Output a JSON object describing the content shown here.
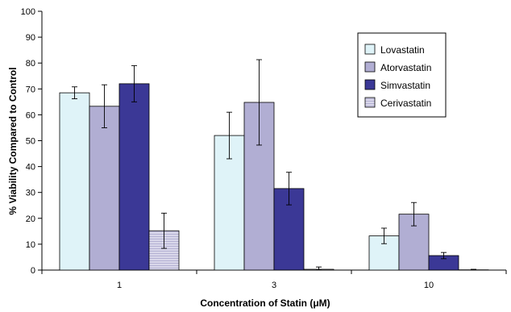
{
  "chart_data": {
    "type": "bar",
    "xlabel": "Concentration of Statin (μM)",
    "ylabel": "% Viability Compared to Control",
    "categories": [
      "1",
      "3",
      "10"
    ],
    "ylim": [
      0,
      100
    ],
    "yticks": [
      0,
      10,
      20,
      30,
      40,
      50,
      60,
      70,
      80,
      90,
      100
    ],
    "grid": false,
    "legend_position": "top-right",
    "series": [
      {
        "name": "Lovastatin",
        "color": "#dff3f8",
        "values": [
          68.5,
          52,
          13.2
        ],
        "errors": [
          2.3,
          9,
          3
        ]
      },
      {
        "name": "Atorvastatin",
        "color": "#b1aed3",
        "values": [
          63.3,
          64.8,
          21.6
        ],
        "errors": [
          8.3,
          16.5,
          4.5
        ]
      },
      {
        "name": "Simvastatin",
        "color": "#3b3896",
        "values": [
          72,
          31.5,
          5.6
        ],
        "errors": [
          7,
          6.3,
          1.2
        ]
      },
      {
        "name": "Cerivastatin",
        "color": "#d9d7ea",
        "values": [
          15.2,
          0.3,
          0.1
        ],
        "errors": [
          6.8,
          0.9,
          0.2
        ]
      }
    ]
  }
}
